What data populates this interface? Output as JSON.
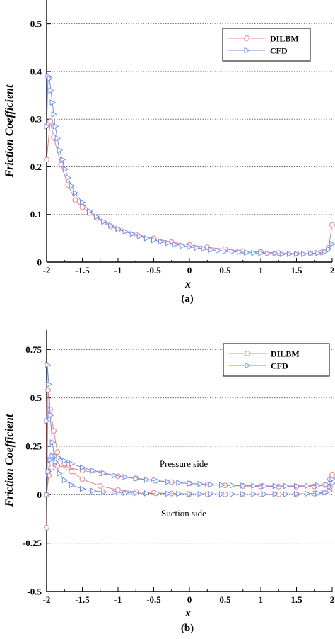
{
  "chart_data": [
    {
      "type": "line",
      "panel_label": "(a)",
      "xlabel": "x",
      "ylabel": "Friction Coefficient",
      "xlim": [
        -2,
        2
      ],
      "ylim": [
        0,
        0.55
      ],
      "x_ticks": [
        "-2",
        "-1.5",
        "-1",
        "-0.5",
        "0",
        "0.5",
        "1",
        "1.5",
        "2"
      ],
      "x_tick_values": [
        -2,
        -1.5,
        -1,
        -0.5,
        0,
        0.5,
        1,
        1.5,
        2
      ],
      "y_ticks": [
        "0",
        "0.1",
        "0.2",
        "0.3",
        "0.4",
        "0.5"
      ],
      "y_tick_values": [
        0,
        0.1,
        0.2,
        0.3,
        0.4,
        0.5
      ],
      "grid": "horizontal dotted",
      "legend_position": "top-right",
      "annotations": [],
      "series": [
        {
          "name": "DILBM",
          "color": "#f08080",
          "marker": "circle",
          "x": [
            -2.0,
            -1.95,
            -1.9,
            -1.8,
            -1.7,
            -1.6,
            -1.5,
            -1.4,
            -1.3,
            -1.2,
            -1.1,
            -1.0,
            -0.75,
            -0.5,
            -0.25,
            0.0,
            0.25,
            0.5,
            0.75,
            1.0,
            1.25,
            1.5,
            1.7,
            1.85,
            1.95,
            2.0
          ],
          "y": [
            0.215,
            0.295,
            0.262,
            0.205,
            0.162,
            0.13,
            0.115,
            0.103,
            0.093,
            0.083,
            0.075,
            0.068,
            0.058,
            0.05,
            0.042,
            0.036,
            0.031,
            0.027,
            0.023,
            0.021,
            0.019,
            0.018,
            0.018,
            0.02,
            0.03,
            0.078
          ]
        },
        {
          "name": "CFD",
          "color": "#6f8fef",
          "marker": "triangle-right",
          "x": [
            -2.0,
            -1.98,
            -1.96,
            -1.94,
            -1.92,
            -1.9,
            -1.88,
            -1.85,
            -1.82,
            -1.78,
            -1.74,
            -1.7,
            -1.65,
            -1.6,
            -1.5,
            -1.4,
            -1.3,
            -1.2,
            -1.1,
            -1.0,
            -0.9,
            -0.8,
            -0.7,
            -0.6,
            -0.5,
            -0.4,
            -0.3,
            -0.2,
            -0.1,
            0.0,
            0.1,
            0.2,
            0.3,
            0.4,
            0.5,
            0.6,
            0.7,
            0.8,
            0.9,
            1.0,
            1.1,
            1.2,
            1.3,
            1.4,
            1.5,
            1.6,
            1.7,
            1.8,
            1.9,
            1.95,
            2.0
          ],
          "y": [
            0.285,
            0.39,
            0.385,
            0.36,
            0.335,
            0.31,
            0.285,
            0.26,
            0.235,
            0.215,
            0.195,
            0.177,
            0.16,
            0.145,
            0.125,
            0.107,
            0.095,
            0.085,
            0.077,
            0.07,
            0.064,
            0.059,
            0.054,
            0.05,
            0.046,
            0.043,
            0.04,
            0.037,
            0.034,
            0.032,
            0.03,
            0.028,
            0.026,
            0.024,
            0.023,
            0.022,
            0.021,
            0.02,
            0.019,
            0.019,
            0.018,
            0.018,
            0.017,
            0.017,
            0.017,
            0.017,
            0.018,
            0.019,
            0.022,
            0.027,
            0.038
          ]
        }
      ]
    },
    {
      "type": "line",
      "panel_label": "(b)",
      "xlabel": "x",
      "ylabel": "Friction Coefficient",
      "xlim": [
        -2,
        2
      ],
      "ylim": [
        -0.5,
        0.85
      ],
      "x_ticks": [
        "-2",
        "-1.5",
        "-1",
        "-0.5",
        "0",
        "0.5",
        "1",
        "1.5",
        "2"
      ],
      "x_tick_values": [
        -2,
        -1.5,
        -1,
        -0.5,
        0,
        0.5,
        1,
        1.5,
        2
      ],
      "y_ticks": [
        "-0.5",
        "-0.25",
        "0",
        "0.25",
        "0.5",
        "0.75"
      ],
      "y_tick_values": [
        -0.5,
        -0.25,
        0,
        0.25,
        0.5,
        0.75
      ],
      "grid": "horizontal dotted",
      "legend_position": "top-right",
      "annotations": [
        "Pressure side",
        "Suction side"
      ],
      "series": [
        {
          "name": "DILBM",
          "color": "#f08080",
          "marker": "circle",
          "x": [
            -2.0,
            -1.97,
            -1.93,
            -1.85,
            -1.7,
            -1.5,
            -1.25,
            -1.0,
            -0.75,
            -0.5,
            -0.25,
            0.0,
            0.25,
            0.5,
            0.75,
            1.0,
            1.25,
            1.5,
            1.75,
            1.9,
            1.97,
            2.0
          ],
          "y": [
            0.0,
            0.1,
            0.14,
            0.15,
            0.14,
            0.125,
            0.11,
            0.095,
            0.085,
            0.075,
            0.065,
            0.058,
            0.052,
            0.048,
            0.045,
            0.043,
            0.042,
            0.042,
            0.043,
            0.05,
            0.08,
            0.105
          ]
        },
        {
          "name": "",
          "color": "#f08080",
          "marker": "circle",
          "x": [
            -2.0,
            -1.98,
            -1.95,
            -1.9,
            -1.85,
            -1.75,
            -1.65,
            -1.5,
            -1.25,
            -1.0,
            -0.75,
            -0.5,
            -0.25,
            0.0,
            0.25,
            0.5,
            0.75,
            1.0,
            1.25,
            1.5,
            1.75,
            1.9,
            1.97,
            2.0
          ],
          "y": [
            -0.17,
            0.54,
            0.44,
            0.33,
            0.22,
            0.16,
            0.12,
            0.08,
            0.045,
            0.025,
            0.015,
            0.01,
            0.006,
            0.004,
            0.003,
            0.002,
            0.002,
            0.002,
            0.002,
            0.003,
            0.006,
            0.012,
            0.04,
            0.09
          ]
        },
        {
          "name": "CFD",
          "color": "#6f8fef",
          "marker": "triangle-right",
          "x": [
            -2.0,
            -1.98,
            -1.95,
            -1.92,
            -1.88,
            -1.83,
            -1.75,
            -1.65,
            -1.5,
            -1.35,
            -1.2,
            -1.05,
            -0.9,
            -0.75,
            -0.6,
            -0.45,
            -0.3,
            -0.15,
            0.0,
            0.15,
            0.3,
            0.45,
            0.6,
            0.75,
            0.9,
            1.05,
            1.2,
            1.35,
            1.5,
            1.65,
            1.8,
            1.92,
            2.0
          ],
          "y": [
            0.0,
            0.12,
            0.18,
            0.2,
            0.2,
            0.19,
            0.175,
            0.16,
            0.14,
            0.125,
            0.112,
            0.1,
            0.091,
            0.083,
            0.077,
            0.071,
            0.066,
            0.062,
            0.058,
            0.055,
            0.052,
            0.05,
            0.048,
            0.047,
            0.046,
            0.045,
            0.045,
            0.045,
            0.045,
            0.046,
            0.048,
            0.052,
            0.06
          ]
        },
        {
          "name": "",
          "color": "#6f8fef",
          "marker": "triangle-right",
          "x": [
            -2.0,
            -1.99,
            -1.97,
            -1.95,
            -1.92,
            -1.88,
            -1.82,
            -1.75,
            -1.65,
            -1.5,
            -1.35,
            -1.2,
            -1.05,
            -0.9,
            -0.75,
            -0.6,
            -0.45,
            -0.3,
            -0.15,
            0.0,
            0.15,
            0.3,
            0.45,
            0.6,
            0.75,
            0.9,
            1.05,
            1.2,
            1.35,
            1.5,
            1.65,
            1.8,
            1.9,
            1.96,
            2.0
          ],
          "y": [
            0.38,
            0.67,
            0.57,
            0.41,
            0.27,
            0.17,
            0.11,
            0.075,
            0.05,
            0.03,
            0.02,
            0.015,
            0.012,
            0.01,
            0.008,
            0.007,
            0.006,
            0.005,
            0.005,
            0.004,
            0.004,
            0.004,
            0.003,
            0.003,
            0.003,
            0.003,
            0.003,
            0.003,
            0.003,
            0.004,
            0.005,
            0.007,
            0.012,
            0.02,
            0.08
          ]
        }
      ]
    }
  ]
}
